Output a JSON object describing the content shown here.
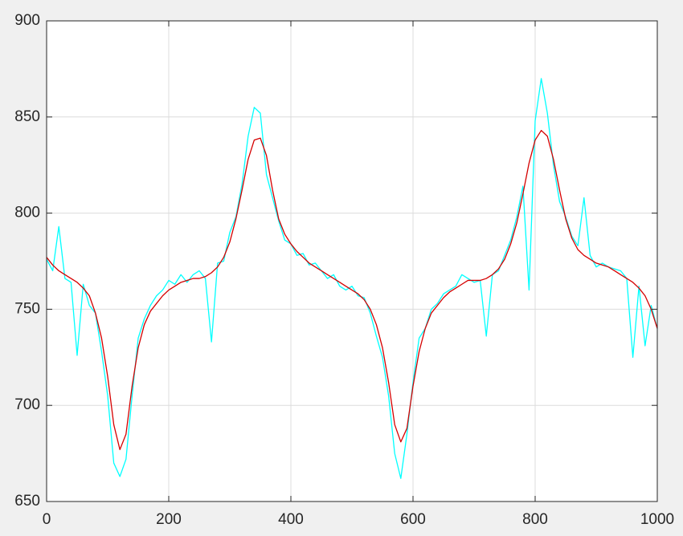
{
  "chart_data": {
    "type": "line",
    "x": [
      0,
      10,
      20,
      30,
      40,
      50,
      60,
      70,
      80,
      90,
      100,
      110,
      120,
      130,
      140,
      150,
      160,
      170,
      180,
      190,
      200,
      210,
      220,
      230,
      240,
      250,
      260,
      270,
      280,
      290,
      300,
      310,
      320,
      330,
      340,
      350,
      360,
      370,
      380,
      390,
      400,
      410,
      420,
      430,
      440,
      450,
      460,
      470,
      480,
      490,
      500,
      510,
      520,
      530,
      540,
      550,
      560,
      570,
      580,
      590,
      600,
      610,
      620,
      630,
      640,
      650,
      660,
      670,
      680,
      690,
      700,
      710,
      720,
      730,
      740,
      750,
      760,
      770,
      780,
      790,
      800,
      810,
      820,
      830,
      840,
      850,
      860,
      870,
      880,
      890,
      900,
      910,
      920,
      930,
      940,
      950,
      960,
      970,
      980,
      990,
      1000
    ],
    "series": [
      {
        "color": "#00ffff",
        "values": [
          776,
          770,
          793,
          766,
          764,
          726,
          763,
          752,
          748,
          728,
          705,
          670,
          663,
          672,
          705,
          735,
          745,
          752,
          757,
          760,
          765,
          763,
          768,
          764,
          768,
          770,
          766,
          733,
          774,
          775,
          790,
          798,
          815,
          840,
          855,
          852,
          820,
          808,
          796,
          786,
          784,
          778,
          779,
          773,
          774,
          770,
          766,
          768,
          762,
          760,
          762,
          757,
          756,
          748,
          736,
          725,
          705,
          675,
          662,
          685,
          712,
          735,
          740,
          750,
          753,
          758,
          760,
          762,
          768,
          766,
          764,
          765,
          736,
          768,
          770,
          778,
          786,
          798,
          814,
          760,
          848,
          870,
          852,
          825,
          806,
          798,
          788,
          783,
          808,
          778,
          772,
          774,
          772,
          771,
          770,
          766,
          725,
          762,
          731,
          752,
          740
        ]
      },
      {
        "color": "#d40000",
        "values": [
          777,
          773,
          770,
          768,
          766,
          764,
          761,
          757,
          748,
          735,
          715,
          690,
          677,
          685,
          710,
          730,
          742,
          749,
          753,
          757,
          760,
          762,
          764,
          765,
          766,
          766,
          767,
          769,
          772,
          777,
          785,
          797,
          812,
          828,
          838,
          839,
          830,
          812,
          797,
          789,
          784,
          780,
          777,
          774,
          772,
          770,
          768,
          766,
          764,
          762,
          760,
          758,
          755,
          750,
          742,
          730,
          712,
          690,
          681,
          688,
          710,
          728,
          740,
          748,
          752,
          756,
          759,
          761,
          763,
          765,
          765,
          765,
          766,
          768,
          771,
          776,
          784,
          795,
          810,
          826,
          838,
          843,
          840,
          828,
          812,
          797,
          787,
          781,
          778,
          776,
          774,
          773,
          772,
          770,
          768,
          766,
          764,
          761,
          757,
          750,
          740
        ]
      }
    ],
    "xlim": [
      0,
      1000
    ],
    "xticks": [
      0,
      200,
      400,
      600,
      800,
      1000
    ],
    "ylim": [
      650,
      900
    ],
    "yticks": [
      650,
      700,
      750,
      800,
      850,
      900
    ],
    "grid": true
  }
}
